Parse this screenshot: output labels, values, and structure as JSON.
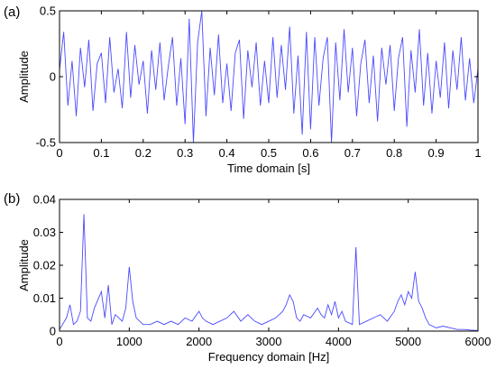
{
  "colors": {
    "signal": "#4a4aff",
    "axis": "#000000",
    "background": "#ffffff"
  },
  "chart_data": [
    {
      "type": "line",
      "panel_label": "(a)",
      "xlabel": "Time domain [s]",
      "ylabel": "Amplitude",
      "xlim": [
        0,
        1
      ],
      "ylim": [
        -0.5,
        0.5
      ],
      "xticks": [
        0,
        0.1,
        0.2,
        0.3,
        0.4,
        0.5,
        0.6,
        0.7,
        0.8,
        0.9,
        1
      ],
      "xtick_labels": [
        "0",
        "0.1",
        "0.2",
        "0.3",
        "0.4",
        "0.5",
        "0.6",
        "0.7",
        "0.8",
        "0.9",
        "1"
      ],
      "yticks": [
        -0.5,
        0,
        0.5
      ],
      "ytick_labels": [
        "-0.5",
        "0",
        "0.5"
      ],
      "grid": false,
      "series": [
        {
          "x": [
            0,
            0.01,
            0.02,
            0.03,
            0.04,
            0.05,
            0.06,
            0.07,
            0.08,
            0.09,
            0.1,
            0.11,
            0.12,
            0.13,
            0.14,
            0.15,
            0.16,
            0.17,
            0.18,
            0.19,
            0.2,
            0.21,
            0.22,
            0.23,
            0.24,
            0.25,
            0.26,
            0.27,
            0.28,
            0.29,
            0.3,
            0.31,
            0.32,
            0.33,
            0.34,
            0.35,
            0.36,
            0.37,
            0.38,
            0.39,
            0.4,
            0.41,
            0.42,
            0.43,
            0.44,
            0.45,
            0.46,
            0.47,
            0.48,
            0.49,
            0.5,
            0.51,
            0.52,
            0.53,
            0.54,
            0.55,
            0.56,
            0.57,
            0.58,
            0.59,
            0.6,
            0.61,
            0.62,
            0.63,
            0.64,
            0.65,
            0.66,
            0.67,
            0.68,
            0.69,
            0.7,
            0.71,
            0.72,
            0.73,
            0.74,
            0.75,
            0.76,
            0.77,
            0.78,
            0.79,
            0.8,
            0.81,
            0.82,
            0.83,
            0.84,
            0.85,
            0.86,
            0.87,
            0.88,
            0.89,
            0.9,
            0.91,
            0.92,
            0.93,
            0.94,
            0.95,
            0.96,
            0.97,
            0.98,
            0.99,
            1
          ],
          "y": [
            0.05,
            0.34,
            -0.22,
            0.12,
            -0.3,
            0.22,
            -0.08,
            0.28,
            -0.26,
            0.1,
            0.18,
            -0.2,
            0.3,
            -0.12,
            0.06,
            -0.24,
            0.34,
            -0.16,
            0.24,
            -0.06,
            0.12,
            -0.28,
            0.2,
            -0.1,
            0.26,
            -0.18,
            0.08,
            0.3,
            -0.22,
            0.14,
            -0.36,
            0.44,
            -0.5,
            0.26,
            0.5,
            -0.3,
            0.22,
            -0.14,
            0.32,
            -0.2,
            0.1,
            -0.26,
            0.18,
            0.28,
            -0.32,
            0.2,
            -0.08,
            0.26,
            -0.22,
            0.12,
            -0.2,
            0.3,
            -0.16,
            0.24,
            -0.1,
            0.38,
            -0.28,
            0.16,
            -0.44,
            0.34,
            -0.4,
            0.3,
            -0.22,
            0.14,
            0.3,
            -0.5,
            0.26,
            -0.18,
            0.36,
            -0.12,
            0.22,
            -0.3,
            0.1,
            0.28,
            -0.2,
            0.16,
            -0.34,
            0.22,
            -0.06,
            0.24,
            -0.26,
            0.14,
            0.3,
            -0.38,
            0.2,
            -0.12,
            0.36,
            -0.22,
            0.18,
            -0.28,
            0.12,
            -0.16,
            0.26,
            -0.24,
            0.2,
            -0.1,
            0.3,
            -0.18,
            0.14,
            -0.2,
            0.06
          ]
        }
      ]
    },
    {
      "type": "line",
      "panel_label": "(b)",
      "xlabel": "Frequency domain [Hz]",
      "ylabel": "Amplitude",
      "xlim": [
        0,
        6000
      ],
      "ylim": [
        0,
        0.04
      ],
      "xticks": [
        0,
        1000,
        2000,
        3000,
        4000,
        5000,
        6000
      ],
      "xtick_labels": [
        "0",
        "1000",
        "2000",
        "3000",
        "4000",
        "5000",
        "6000"
      ],
      "yticks": [
        0,
        0.01,
        0.02,
        0.03,
        0.04
      ],
      "ytick_labels": [
        "0",
        "0.01",
        "0.02",
        "0.03",
        "0.04"
      ],
      "grid": false,
      "series": [
        {
          "x": [
            0,
            100,
            150,
            200,
            250,
            300,
            350,
            400,
            450,
            500,
            600,
            650,
            700,
            750,
            800,
            900,
            950,
            1000,
            1050,
            1100,
            1150,
            1200,
            1300,
            1400,
            1500,
            1600,
            1700,
            1800,
            1900,
            2000,
            2050,
            2100,
            2200,
            2300,
            2400,
            2450,
            2500,
            2600,
            2700,
            2800,
            2900,
            3000,
            3100,
            3200,
            3250,
            3300,
            3350,
            3400,
            3450,
            3500,
            3600,
            3700,
            3750,
            3800,
            3850,
            3900,
            3950,
            4000,
            4050,
            4100,
            4200,
            4250,
            4300,
            4400,
            4500,
            4600,
            4700,
            4800,
            4850,
            4900,
            4950,
            5000,
            5050,
            5100,
            5150,
            5200,
            5250,
            5300,
            5400,
            5500,
            5600,
            5700,
            5800,
            5900,
            6000
          ],
          "y": [
            0.0005,
            0.004,
            0.008,
            0.002,
            0.003,
            0.006,
            0.0355,
            0.004,
            0.003,
            0.007,
            0.012,
            0.004,
            0.014,
            0.002,
            0.005,
            0.003,
            0.007,
            0.0195,
            0.009,
            0.004,
            0.003,
            0.002,
            0.002,
            0.003,
            0.002,
            0.003,
            0.002,
            0.004,
            0.003,
            0.006,
            0.004,
            0.003,
            0.002,
            0.003,
            0.004,
            0.005,
            0.006,
            0.003,
            0.005,
            0.003,
            0.002,
            0.003,
            0.004,
            0.006,
            0.008,
            0.011,
            0.009,
            0.004,
            0.003,
            0.005,
            0.004,
            0.007,
            0.005,
            0.004,
            0.008,
            0.005,
            0.009,
            0.004,
            0.006,
            0.003,
            0.002,
            0.0255,
            0.002,
            0.003,
            0.004,
            0.005,
            0.003,
            0.006,
            0.009,
            0.011,
            0.008,
            0.012,
            0.01,
            0.018,
            0.009,
            0.007,
            0.004,
            0.002,
            0.001,
            0.0015,
            0.001,
            0.0005,
            0.0005,
            0.0003,
            0.0002
          ]
        }
      ]
    }
  ]
}
